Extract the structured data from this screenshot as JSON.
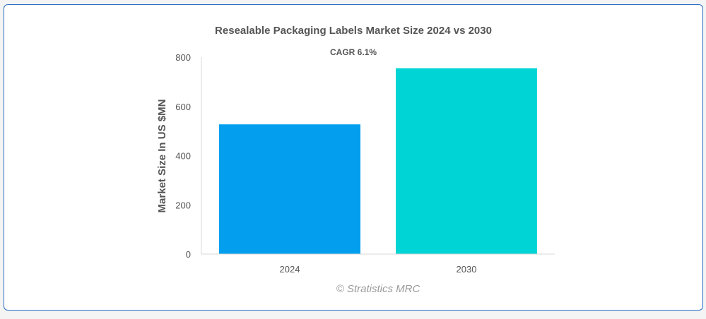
{
  "chart_data": {
    "type": "bar",
    "title": "Resealable Packaging Labels Market Size 2024 vs 2030",
    "subtitle": "CAGR 6.1%",
    "ylabel": "Market Size In US $MN",
    "xlabel": "",
    "categories": [
      "2024",
      "2030"
    ],
    "values": [
      527,
      755
    ],
    "colors": [
      "#039fee",
      "#00d4d4"
    ],
    "ylim": [
      0,
      800
    ],
    "yticks": [
      "0",
      "200",
      "400",
      "600",
      "800"
    ],
    "grid": false,
    "legend": "none"
  },
  "credit": "© Stratistics MRC"
}
